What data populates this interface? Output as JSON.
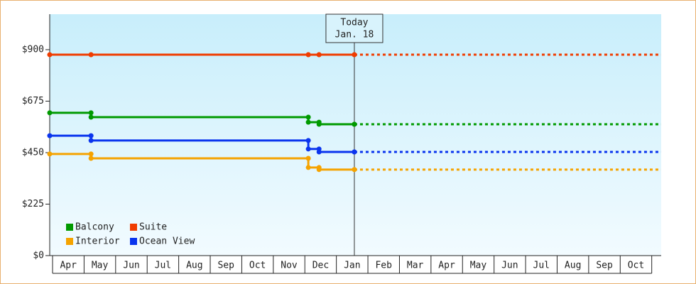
{
  "chart_data": {
    "type": "step",
    "x": [
      -0.09,
      1.22,
      8.11,
      8.45,
      9.57
    ],
    "xlim": [
      -0.09,
      19.3
    ],
    "xticks": [
      {
        "value": 0.5,
        "label": "Apr"
      },
      {
        "value": 1.5,
        "label": "May"
      },
      {
        "value": 2.5,
        "label": "Jun"
      },
      {
        "value": 3.5,
        "label": "Jul"
      },
      {
        "value": 4.5,
        "label": "Aug"
      },
      {
        "value": 5.5,
        "label": "Sep"
      },
      {
        "value": 6.5,
        "label": "Oct"
      },
      {
        "value": 7.5,
        "label": "Nov"
      },
      {
        "value": 8.5,
        "label": "Dec"
      },
      {
        "value": 9.5,
        "label": "Jan"
      },
      {
        "value": 10.5,
        "label": "Feb"
      },
      {
        "value": 11.5,
        "label": "Mar"
      },
      {
        "value": 12.5,
        "label": "Apr"
      },
      {
        "value": 13.5,
        "label": "May"
      },
      {
        "value": 14.5,
        "label": "Jun"
      },
      {
        "value": 15.5,
        "label": "Jul"
      },
      {
        "value": 16.5,
        "label": "Aug"
      },
      {
        "value": 17.5,
        "label": "Sep"
      },
      {
        "value": 18.5,
        "label": "Oct"
      }
    ],
    "ylim": [
      0,
      1055
    ],
    "yticks": [
      {
        "value": 0,
        "label": "$0"
      },
      {
        "value": 225,
        "label": "$225"
      },
      {
        "value": 450,
        "label": "$450"
      },
      {
        "value": 675,
        "label": "$675"
      },
      {
        "value": 900,
        "label": "$900"
      }
    ],
    "annotation": {
      "lines": [
        "Today",
        "Jan. 18"
      ],
      "x": 9.57
    },
    "legend": "lower left",
    "series": [
      {
        "name": "Balcony",
        "color": "#009a00",
        "values": [
          624,
          605,
          583,
          574,
          574
        ]
      },
      {
        "name": "Suite",
        "color": "#f03c00",
        "values": [
          878,
          878,
          878,
          878,
          878
        ]
      },
      {
        "name": "Interior",
        "color": "#f5a300",
        "values": [
          444,
          425,
          385,
          376,
          376
        ]
      },
      {
        "name": "Ocean View",
        "color": "#0a34ee",
        "values": [
          524,
          503,
          466,
          453,
          453
        ]
      }
    ]
  }
}
